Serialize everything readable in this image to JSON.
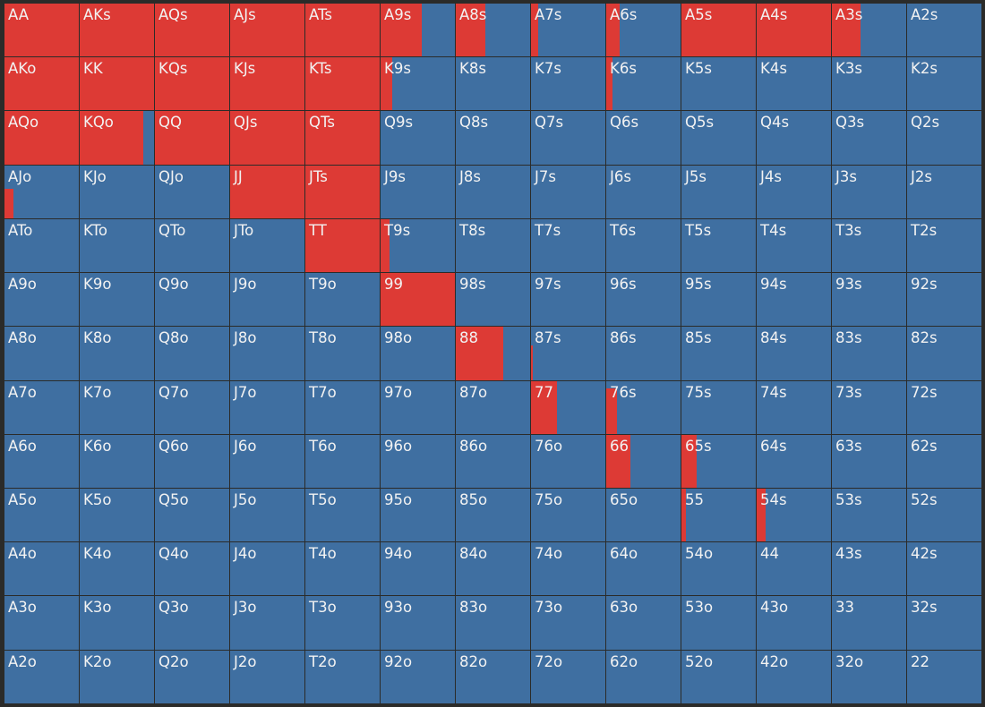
{
  "colors": {
    "raise": "#dd3a35",
    "fold": "#3f6fa1",
    "background": "#2b2b29",
    "text": "#f2f2f2"
  },
  "rows": [
    [
      [
        "AA",
        1
      ],
      [
        "AKs",
        1
      ],
      [
        "AQs",
        1
      ],
      [
        "AJs",
        1
      ],
      [
        "ATs",
        1
      ],
      [
        "A9s",
        0.55
      ],
      [
        "A8s",
        0.4
      ],
      [
        "A7s",
        0.1
      ],
      [
        "A6s",
        0.18
      ],
      [
        "A5s",
        1
      ],
      [
        "A4s",
        1
      ],
      [
        "A3s",
        0.38
      ],
      [
        "A2s",
        0
      ]
    ],
    [
      [
        "AKo",
        1
      ],
      [
        "KK",
        1
      ],
      [
        "KQs",
        1
      ],
      [
        "KJs",
        1
      ],
      [
        "KTs",
        1
      ],
      [
        "K9s",
        0.16
      ],
      [
        "K8s",
        0
      ],
      [
        "K7s",
        0
      ],
      [
        "K6s",
        0.08
      ],
      [
        "K5s",
        0
      ],
      [
        "K4s",
        0
      ],
      [
        "K3s",
        0
      ],
      [
        "K2s",
        0
      ]
    ],
    [
      [
        "AQo",
        1
      ],
      [
        "KQo",
        0.86
      ],
      [
        "QQ",
        1
      ],
      [
        "QJs",
        1
      ],
      [
        "QTs",
        1
      ],
      [
        "Q9s",
        0
      ],
      [
        "Q8s",
        0
      ],
      [
        "Q7s",
        0
      ],
      [
        "Q6s",
        0
      ],
      [
        "Q5s",
        0
      ],
      [
        "Q4s",
        0
      ],
      [
        "Q3s",
        0
      ],
      [
        "Q2s",
        0
      ]
    ],
    [
      [
        "AJo",
        0.12,
        0.55
      ],
      [
        "KJo",
        0
      ],
      [
        "QJo",
        0
      ],
      [
        "JJ",
        1
      ],
      [
        "JTs",
        1
      ],
      [
        "J9s",
        0
      ],
      [
        "J8s",
        0
      ],
      [
        "J7s",
        0
      ],
      [
        "J6s",
        0
      ],
      [
        "J5s",
        0
      ],
      [
        "J4s",
        0
      ],
      [
        "J3s",
        0
      ],
      [
        "J2s",
        0
      ]
    ],
    [
      [
        "ATo",
        0
      ],
      [
        "KTo",
        0
      ],
      [
        "QTo",
        0
      ],
      [
        "JTo",
        0
      ],
      [
        "TT",
        1
      ],
      [
        "T9s",
        0.12
      ],
      [
        "T8s",
        0
      ],
      [
        "T7s",
        0
      ],
      [
        "T6s",
        0
      ],
      [
        "T5s",
        0
      ],
      [
        "T4s",
        0
      ],
      [
        "T3s",
        0
      ],
      [
        "T2s",
        0
      ]
    ],
    [
      [
        "A9o",
        0
      ],
      [
        "K9o",
        0
      ],
      [
        "Q9o",
        0
      ],
      [
        "J9o",
        0
      ],
      [
        "T9o",
        0
      ],
      [
        "99",
        1
      ],
      [
        "98s",
        0
      ],
      [
        "97s",
        0
      ],
      [
        "96s",
        0
      ],
      [
        "95s",
        0
      ],
      [
        "94s",
        0
      ],
      [
        "93s",
        0
      ],
      [
        "92s",
        0
      ]
    ],
    [
      [
        "A8o",
        0
      ],
      [
        "K8o",
        0
      ],
      [
        "Q8o",
        0
      ],
      [
        "J8o",
        0
      ],
      [
        "T8o",
        0
      ],
      [
        "98o",
        0
      ],
      [
        "88",
        0.64
      ],
      [
        "87s",
        0.03,
        0.65
      ],
      [
        "86s",
        0
      ],
      [
        "85s",
        0
      ],
      [
        "84s",
        0
      ],
      [
        "83s",
        0
      ],
      [
        "82s",
        0
      ]
    ],
    [
      [
        "A7o",
        0
      ],
      [
        "K7o",
        0
      ],
      [
        "Q7o",
        0
      ],
      [
        "J7o",
        0
      ],
      [
        "T7o",
        0
      ],
      [
        "97o",
        0
      ],
      [
        "87o",
        0
      ],
      [
        "77",
        0.35
      ],
      [
        "76s",
        0.14,
        0.85
      ],
      [
        "75s",
        0
      ],
      [
        "74s",
        0
      ],
      [
        "73s",
        0
      ],
      [
        "72s",
        0
      ]
    ],
    [
      [
        "A6o",
        0
      ],
      [
        "K6o",
        0
      ],
      [
        "Q6o",
        0
      ],
      [
        "J6o",
        0
      ],
      [
        "T6o",
        0
      ],
      [
        "96o",
        0
      ],
      [
        "86o",
        0
      ],
      [
        "76o",
        0
      ],
      [
        "66",
        0.32
      ],
      [
        "65s",
        0.2
      ],
      [
        "64s",
        0
      ],
      [
        "63s",
        0
      ],
      [
        "62s",
        0
      ]
    ],
    [
      [
        "A5o",
        0
      ],
      [
        "K5o",
        0
      ],
      [
        "Q5o",
        0
      ],
      [
        "J5o",
        0
      ],
      [
        "T5o",
        0
      ],
      [
        "95o",
        0
      ],
      [
        "85o",
        0
      ],
      [
        "75o",
        0
      ],
      [
        "65o",
        0
      ],
      [
        "55",
        0.06
      ],
      [
        "54s",
        0.12
      ],
      [
        "53s",
        0
      ],
      [
        "52s",
        0
      ]
    ],
    [
      [
        "A4o",
        0
      ],
      [
        "K4o",
        0
      ],
      [
        "Q4o",
        0
      ],
      [
        "J4o",
        0
      ],
      [
        "T4o",
        0
      ],
      [
        "94o",
        0
      ],
      [
        "84o",
        0
      ],
      [
        "74o",
        0
      ],
      [
        "64o",
        0
      ],
      [
        "54o",
        0
      ],
      [
        "44",
        0
      ],
      [
        "43s",
        0
      ],
      [
        "42s",
        0
      ]
    ],
    [
      [
        "A3o",
        0
      ],
      [
        "K3o",
        0
      ],
      [
        "Q3o",
        0
      ],
      [
        "J3o",
        0
      ],
      [
        "T3o",
        0
      ],
      [
        "93o",
        0
      ],
      [
        "83o",
        0
      ],
      [
        "73o",
        0
      ],
      [
        "63o",
        0
      ],
      [
        "53o",
        0
      ],
      [
        "43o",
        0
      ],
      [
        "33",
        0
      ],
      [
        "32s",
        0
      ]
    ],
    [
      [
        "A2o",
        0
      ],
      [
        "K2o",
        0
      ],
      [
        "Q2o",
        0
      ],
      [
        "J2o",
        0
      ],
      [
        "T2o",
        0
      ],
      [
        "92o",
        0
      ],
      [
        "82o",
        0
      ],
      [
        "72o",
        0
      ],
      [
        "62o",
        0
      ],
      [
        "52o",
        0
      ],
      [
        "42o",
        0
      ],
      [
        "32o",
        0
      ],
      [
        "22",
        0
      ]
    ]
  ]
}
